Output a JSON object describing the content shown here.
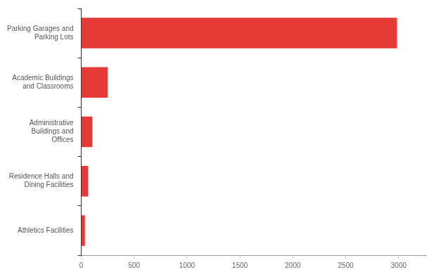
{
  "chart_data": {
    "type": "bar",
    "orientation": "horizontal",
    "categories": [
      "Parking Garages and Parking Lots",
      "Academic Buildings and Classrooms",
      "Administrative Buildings and Offices",
      "Residence Halls and Dining Facilities",
      "Athletics Facilities"
    ],
    "values": [
      2985,
      250,
      105,
      65,
      35
    ],
    "color": "#e63a37",
    "xlim": [
      0,
      3260
    ],
    "xticks": [
      0,
      500,
      1000,
      1500,
      2000,
      2500,
      3000
    ],
    "grid": false
  }
}
